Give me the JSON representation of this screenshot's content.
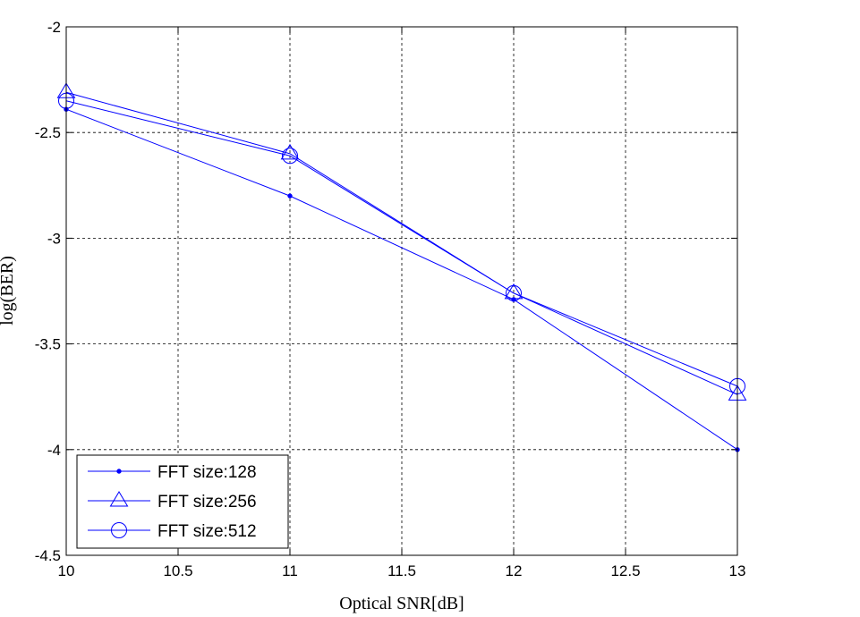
{
  "chart_data": {
    "type": "line",
    "title": "",
    "xlabel": "Optical SNR[dB]",
    "ylabel": "log(BER)",
    "xlim": [
      10,
      13
    ],
    "ylim": [
      -4.5,
      -2
    ],
    "xticks": [
      10,
      10.5,
      11,
      11.5,
      12,
      12.5,
      13
    ],
    "yticks": [
      -2,
      -2.5,
      -3,
      -3.5,
      -4,
      -4.5
    ],
    "xtick_labels": [
      "10",
      "10.5",
      "11",
      "11.5",
      "12",
      "12.5",
      "13"
    ],
    "ytick_labels": [
      "-2",
      "-2.5",
      "-3",
      "-3.5",
      "-4",
      "-4.5"
    ],
    "grid": true,
    "legend_position": "bottom-left",
    "line_color": "#0000ff",
    "series": [
      {
        "name": "FFT size:128",
        "marker": "point",
        "x": [
          10,
          11,
          12,
          13
        ],
        "y": [
          -2.39,
          -2.8,
          -3.29,
          -4.0
        ]
      },
      {
        "name": "FFT size:256",
        "marker": "triangle",
        "x": [
          10,
          11,
          12,
          13
        ],
        "y": [
          -2.31,
          -2.6,
          -3.26,
          -3.74
        ]
      },
      {
        "name": "FFT size:512",
        "marker": "circle",
        "x": [
          10,
          11,
          12,
          13
        ],
        "y": [
          -2.35,
          -2.61,
          -3.26,
          -3.7
        ]
      }
    ]
  }
}
